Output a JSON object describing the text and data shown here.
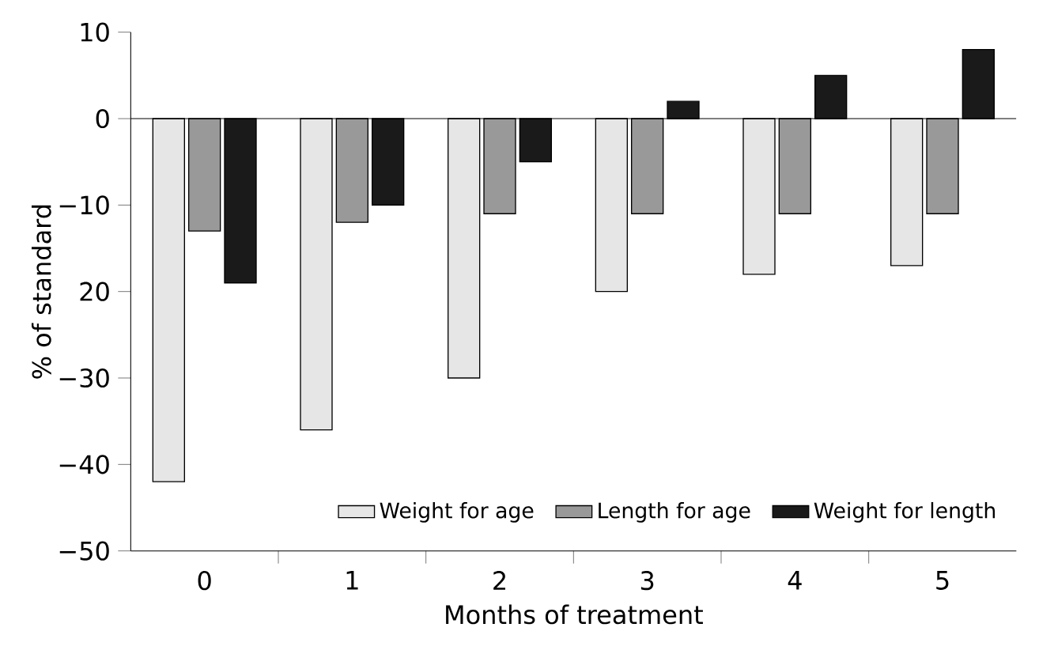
{
  "chart_data": {
    "type": "bar",
    "xlabel": "Months of treatment",
    "ylabel": "% of standard",
    "categories": [
      "0",
      "1",
      "2",
      "3",
      "4",
      "5"
    ],
    "series": [
      {
        "name": "Weight for age",
        "color": "#e6e6e6",
        "values": [
          -42,
          -36,
          -30,
          -20,
          -18,
          -17
        ]
      },
      {
        "name": "Length for age",
        "color": "#999999",
        "values": [
          -13,
          -12,
          -11,
          -11,
          -11,
          -11
        ]
      },
      {
        "name": "Weight for length",
        "color": "#1a1a1a",
        "values": [
          -19,
          -10,
          -5,
          2,
          5,
          8
        ]
      }
    ],
    "ylim": [
      -50,
      10
    ],
    "yticks": [
      {
        "value": -50,
        "label": "−50"
      },
      {
        "value": -40,
        "label": "−40"
      },
      {
        "value": -30,
        "label": "−30"
      },
      {
        "value": -20,
        "label": "20"
      },
      {
        "value": -10,
        "label": "−10"
      },
      0,
      10
    ],
    "ref_lines": [
      {
        "axis": "y",
        "value": 0
      }
    ],
    "legend": "bottom right"
  }
}
